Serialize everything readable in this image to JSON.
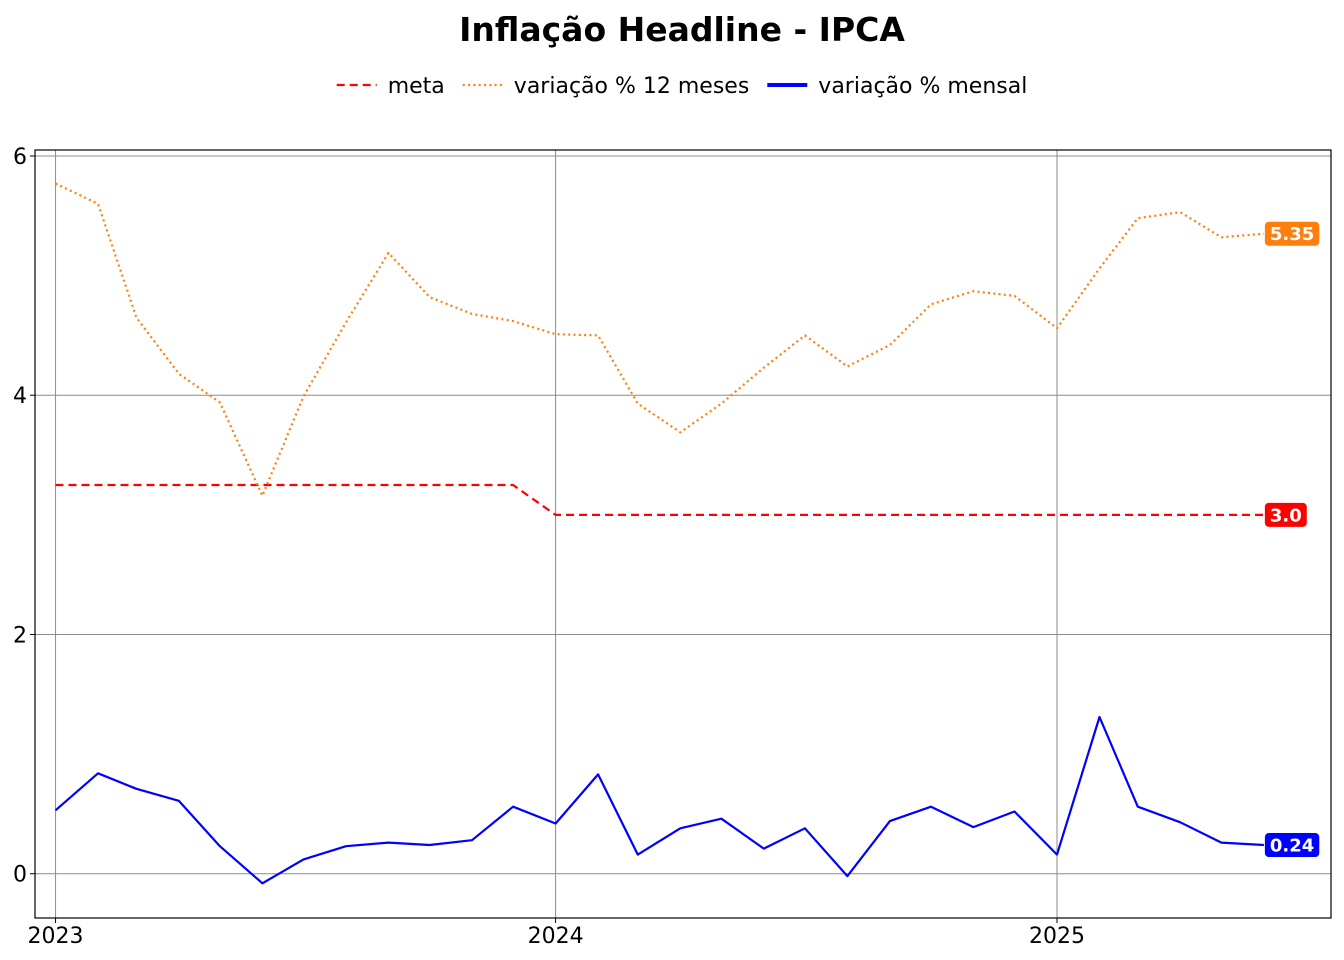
{
  "chart_data": {
    "type": "line",
    "title": "Inflação Headline - IPCA",
    "xlabel": "",
    "ylabel": "",
    "x": [
      "2023-01",
      "2023-02",
      "2023-03",
      "2023-04",
      "2023-05",
      "2023-06",
      "2023-07",
      "2023-08",
      "2023-09",
      "2023-10",
      "2023-11",
      "2023-12",
      "2024-01",
      "2024-02",
      "2024-03",
      "2024-04",
      "2024-05",
      "2024-06",
      "2024-07",
      "2024-08",
      "2024-09",
      "2024-10",
      "2024-11",
      "2024-12",
      "2025-01",
      "2025-02",
      "2025-03",
      "2025-04",
      "2025-05",
      "2025-06"
    ],
    "xticks": [
      {
        "value": "2023-01",
        "label": "2023"
      },
      {
        "value": "2024-01",
        "label": "2024"
      },
      {
        "value": "2025-01",
        "label": "2025"
      }
    ],
    "yticks": [
      0,
      2,
      4,
      6
    ],
    "ylim": [
      -0.37,
      6.05
    ],
    "xlim": [
      "2022-12-17",
      "2025-07-20"
    ],
    "grid": true,
    "legend": "top-center",
    "series": [
      {
        "name": "meta",
        "color": "#ff0000",
        "style": "dashed",
        "end_label": "3.0",
        "values": [
          3.25,
          3.25,
          3.25,
          3.25,
          3.25,
          3.25,
          3.25,
          3.25,
          3.25,
          3.25,
          3.25,
          3.25,
          3.0,
          3.0,
          3.0,
          3.0,
          3.0,
          3.0,
          3.0,
          3.0,
          3.0,
          3.0,
          3.0,
          3.0,
          3.0,
          3.0,
          3.0,
          3.0,
          3.0,
          3.0
        ]
      },
      {
        "name": "variação % 12 meses",
        "color": "#ff7f0e",
        "style": "dotted",
        "end_label": "5.35",
        "values": [
          5.77,
          5.6,
          4.65,
          4.18,
          3.94,
          3.16,
          3.99,
          4.61,
          5.19,
          4.82,
          4.68,
          4.62,
          4.51,
          4.5,
          3.93,
          3.69,
          3.93,
          4.23,
          4.5,
          4.24,
          4.42,
          4.76,
          4.87,
          4.83,
          4.56,
          5.06,
          5.48,
          5.53,
          5.32,
          5.35
        ]
      },
      {
        "name": "variação % mensal",
        "color": "#0000ff",
        "style": "solid",
        "end_label": "0.24",
        "values": [
          0.53,
          0.84,
          0.71,
          0.61,
          0.23,
          -0.08,
          0.12,
          0.23,
          0.26,
          0.24,
          0.28,
          0.56,
          0.42,
          0.83,
          0.16,
          0.38,
          0.46,
          0.21,
          0.38,
          -0.02,
          0.44,
          0.56,
          0.39,
          0.52,
          0.16,
          1.31,
          0.56,
          0.43,
          0.26,
          0.24
        ]
      }
    ]
  }
}
